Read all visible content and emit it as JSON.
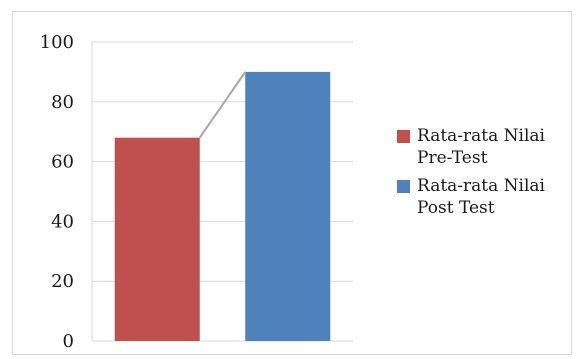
{
  "chart_data": {
    "type": "bar",
    "categories": [
      "Rata-rata Nilai Pre-Test",
      "Rata-rata Nilai Post Test"
    ],
    "values": [
      68,
      90
    ],
    "colors": [
      "#c0504d",
      "#4f81bd"
    ],
    "connector_color": "#a6a6a6",
    "grid_color": "#d9d9d9",
    "title": "",
    "xlabel": "",
    "ylabel": "",
    "ylim": [
      0,
      100
    ],
    "yticks": [
      0,
      20,
      40,
      60,
      80,
      100
    ],
    "grid": true,
    "legend_position": "right"
  },
  "legend": {
    "items": [
      {
        "line1": "Rata-rata Nilai",
        "line2": "Pre-Test"
      },
      {
        "line1": "Rata-rata Nilai",
        "line2": "Post Test"
      }
    ]
  }
}
